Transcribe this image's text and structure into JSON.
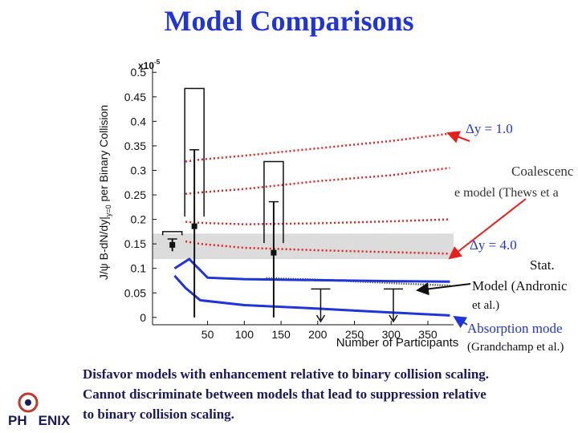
{
  "chart_data": {
    "type": "line",
    "title": "Model Comparisons",
    "x_label": "Number of Participants",
    "y_label": [
      "J/ψ B-dN/dy|",
      "y=0",
      " per Binary Collision"
    ],
    "y_scale_label": [
      "x10",
      "-5"
    ],
    "xlim": [
      -25,
      385
    ],
    "ylim": [
      -0.015,
      0.52
    ],
    "xticks": [
      50,
      100,
      150,
      200,
      250,
      300,
      350
    ],
    "yticks": [
      0,
      0.05,
      0.1,
      0.15,
      0.2,
      0.25,
      0.3,
      0.35,
      0.4,
      0.45,
      0.5
    ],
    "band": {
      "color": "#dcdcdc",
      "values": [
        0.119,
        0.171
      ]
    },
    "series": [
      {
        "color": "#e8201c",
        "style": "dotted",
        "x": [
          20,
          40,
          100,
          200,
          300,
          380
        ],
        "values": [
          0.318,
          0.322,
          0.33,
          0.345,
          0.36,
          0.375
        ]
      },
      {
        "color": "#e8201c",
        "style": "dotted",
        "x": [
          20,
          40,
          100,
          200,
          300,
          380
        ],
        "values": [
          0.252,
          0.255,
          0.262,
          0.278,
          0.29,
          0.305
        ]
      },
      {
        "color": "#e8201c",
        "style": "dotted",
        "x": [
          20,
          40,
          100,
          200,
          300,
          380
        ],
        "values": [
          0.195,
          0.193,
          0.19,
          0.192,
          0.196,
          0.2
        ]
      },
      {
        "color": "#e8201c",
        "style": "dotted",
        "x": [
          20,
          40,
          100,
          200,
          300,
          380
        ],
        "values": [
          0.155,
          0.15,
          0.142,
          0.137,
          0.133,
          0.13
        ]
      },
      {
        "color": "#111111",
        "style": "dashed",
        "x": [
          130,
          200,
          300,
          380
        ],
        "values": [
          0.08,
          0.077,
          0.07,
          0.065
        ]
      },
      {
        "color": "#1f35d8",
        "style": "solid",
        "x": [
          5,
          25,
          50,
          100,
          200,
          300,
          380
        ],
        "values": [
          0.1,
          0.119,
          0.081,
          0.078,
          0.076,
          0.074,
          0.073
        ]
      },
      {
        "color": "#1f35d8",
        "style": "solid",
        "x": [
          5,
          20,
          40,
          100,
          200,
          300,
          380
        ],
        "values": [
          0.085,
          0.06,
          0.035,
          0.025,
          0.018,
          0.01,
          0.004
        ]
      }
    ],
    "points": {
      "color": "#111111",
      "x": [
        2,
        32,
        140
      ],
      "values": [
        0.148,
        0.186,
        0.132
      ],
      "high": [
        0.16,
        0.342,
        0.236
      ],
      "low": [
        0.135,
        0,
        0
      ],
      "sys": [
        0.175,
        0.467,
        0.318
      ]
    },
    "upper_limits": {
      "x": [
        204,
        303
      ],
      "values": [
        0.058,
        0.058
      ]
    },
    "annotations": [
      "Δy = 1.0",
      "Coalescenc",
      "e model (Thews et a",
      "Δy = 4.0",
      "Stat.",
      "Model (Andronic",
      "et al.)",
      "Absorption mode",
      "(Grandchamp et al.)"
    ],
    "caption": [
      "Disfavor models with enhancement relative to binary collision scaling.",
      "Cannot discriminate between models that lead to suppression relative",
      "to binary collision scaling."
    ],
    "logo": [
      "PH",
      "ENIX"
    ]
  }
}
